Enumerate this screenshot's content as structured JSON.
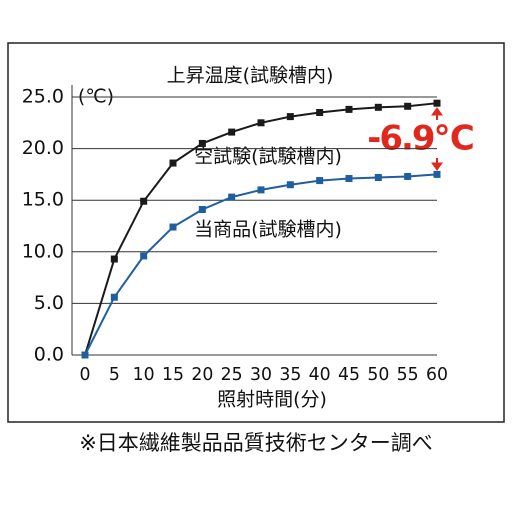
{
  "chart_data": {
    "type": "line",
    "title": "上昇温度(試験槽内)",
    "y_unit": "(℃)",
    "x_label": "照射時間(分)",
    "annotation": "-6.9℃",
    "source": "※日本繊維製品品質技術センター調べ",
    "x": [
      0,
      5,
      10,
      15,
      20,
      25,
      30,
      35,
      40,
      45,
      50,
      55,
      60
    ],
    "series": [
      {
        "name": "空試験(試験槽内)",
        "color": "#1a1a1a",
        "values": [
          0,
          9.3,
          14.9,
          18.6,
          20.5,
          21.6,
          22.5,
          23.1,
          23.5,
          23.8,
          24.0,
          24.1,
          24.4
        ]
      },
      {
        "name": "当商品(試験槽内)",
        "color": "#1f5fa0",
        "values": [
          0,
          5.6,
          9.6,
          12.4,
          14.1,
          15.3,
          16.0,
          16.5,
          16.9,
          17.1,
          17.2,
          17.3,
          17.5
        ]
      }
    ],
    "xlim": [
      0,
      60
    ],
    "xticks": [
      0,
      5,
      10,
      15,
      20,
      25,
      30,
      35,
      40,
      45,
      50,
      55,
      60
    ],
    "ylim": [
      0,
      25
    ],
    "yticks": [
      {
        "value": 0,
        "label": "0.0"
      },
      {
        "value": 5,
        "label": "5.0"
      },
      {
        "value": 10,
        "label": "10.0"
      },
      {
        "value": 15,
        "label": "15.0"
      },
      {
        "value": 20,
        "label": "20.0"
      },
      {
        "value": 25,
        "label": "25.0"
      }
    ],
    "grid": true
  }
}
